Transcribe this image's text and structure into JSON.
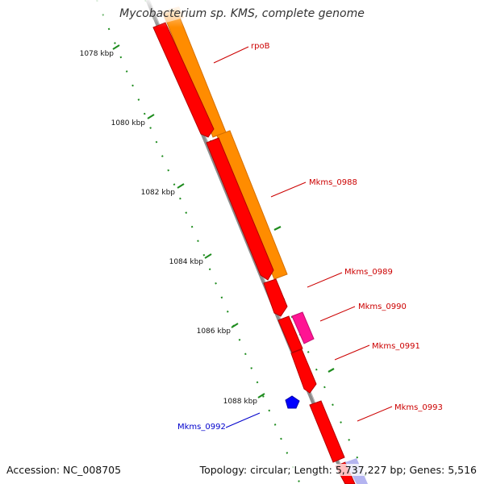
{
  "title": "Mycobacterium sp. KMS, complete genome",
  "accession": {
    "label": "Accession:",
    "value": "NC_008705"
  },
  "summary": {
    "topology_label": "Topology:",
    "topology": "circular",
    "length_label": "Length:",
    "length": "5,737,227 bp",
    "genes_label": "Genes:",
    "genes": "5,516"
  },
  "scale_ticks": [
    {
      "label": "1078 kbp"
    },
    {
      "label": "1080 kbp"
    },
    {
      "label": "1082 kbp"
    },
    {
      "label": "1084 kbp"
    },
    {
      "label": "1086 kbp"
    },
    {
      "label": "1088 kbp"
    }
  ],
  "genes": [
    {
      "name": "rpoB",
      "color": "#ff8c00",
      "strand": "+",
      "labeled": true
    },
    {
      "name": "Mkms_0988",
      "color": "#ff8c00",
      "strand": "+",
      "labeled": true
    },
    {
      "name": "Mkms_0989",
      "color": "#ff0000",
      "strand": "+",
      "labeled": true
    },
    {
      "name": "Mkms_0990",
      "color": "#ff1493",
      "strand": "+",
      "labeled": true
    },
    {
      "name": "Mkms_0991",
      "color": "#ff0000",
      "strand": "+",
      "labeled": true
    },
    {
      "name": "Mkms_0992",
      "color": "#0000ff",
      "strand": "-",
      "labeled": true
    },
    {
      "name": "Mkms_0993",
      "color": "#ff0000",
      "strand": "+",
      "labeled": true
    }
  ],
  "colors": {
    "backbone": "#8c8c8c",
    "tick_green": "#1e8c1e",
    "label_red": "#cc0000",
    "label_blue": "#0000cc",
    "faded_orange": "#ffd9b0",
    "faded_purple": "#b4b4f0"
  }
}
